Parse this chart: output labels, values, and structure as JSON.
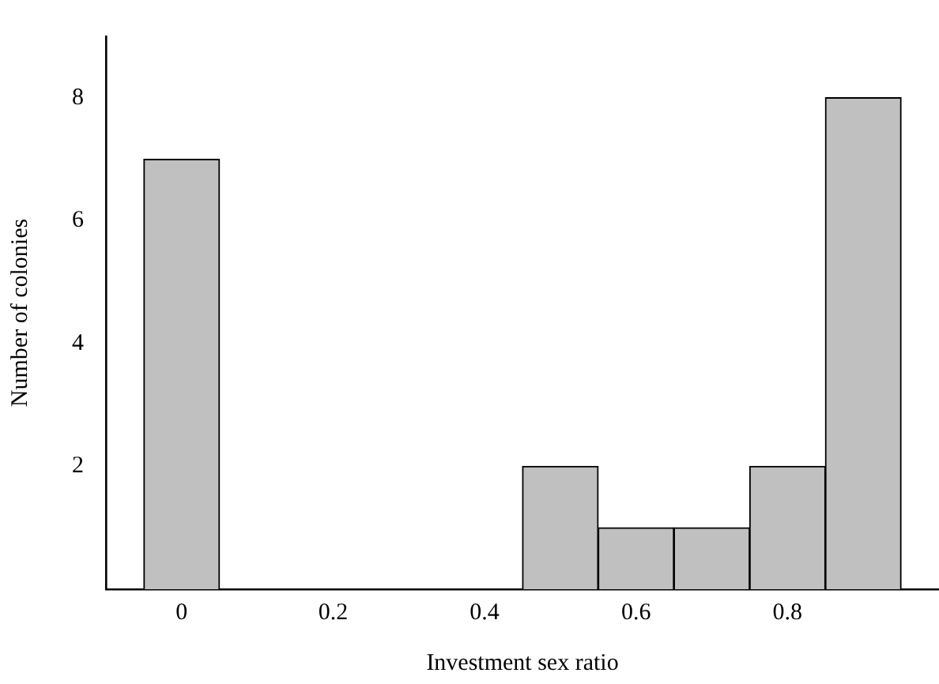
{
  "chart_data": {
    "type": "histogram",
    "xlabel": "Investment sex ratio",
    "ylabel": "Number of colonies",
    "bins": [
      -0.05,
      0.05,
      0.15,
      0.25,
      0.35,
      0.45,
      0.55,
      0.65,
      0.75,
      0.85,
      0.95
    ],
    "values": [
      7,
      0,
      0,
      0,
      0,
      2,
      1,
      1,
      2,
      8
    ],
    "color": "#c0c0c0",
    "xlim": [
      -0.1,
      1.0
    ],
    "xticks": [
      0,
      0.2,
      0.4,
      0.6,
      0.8
    ],
    "ylim": [
      0,
      9
    ],
    "yticks": [
      2,
      4,
      6,
      8
    ],
    "grid": false
  }
}
